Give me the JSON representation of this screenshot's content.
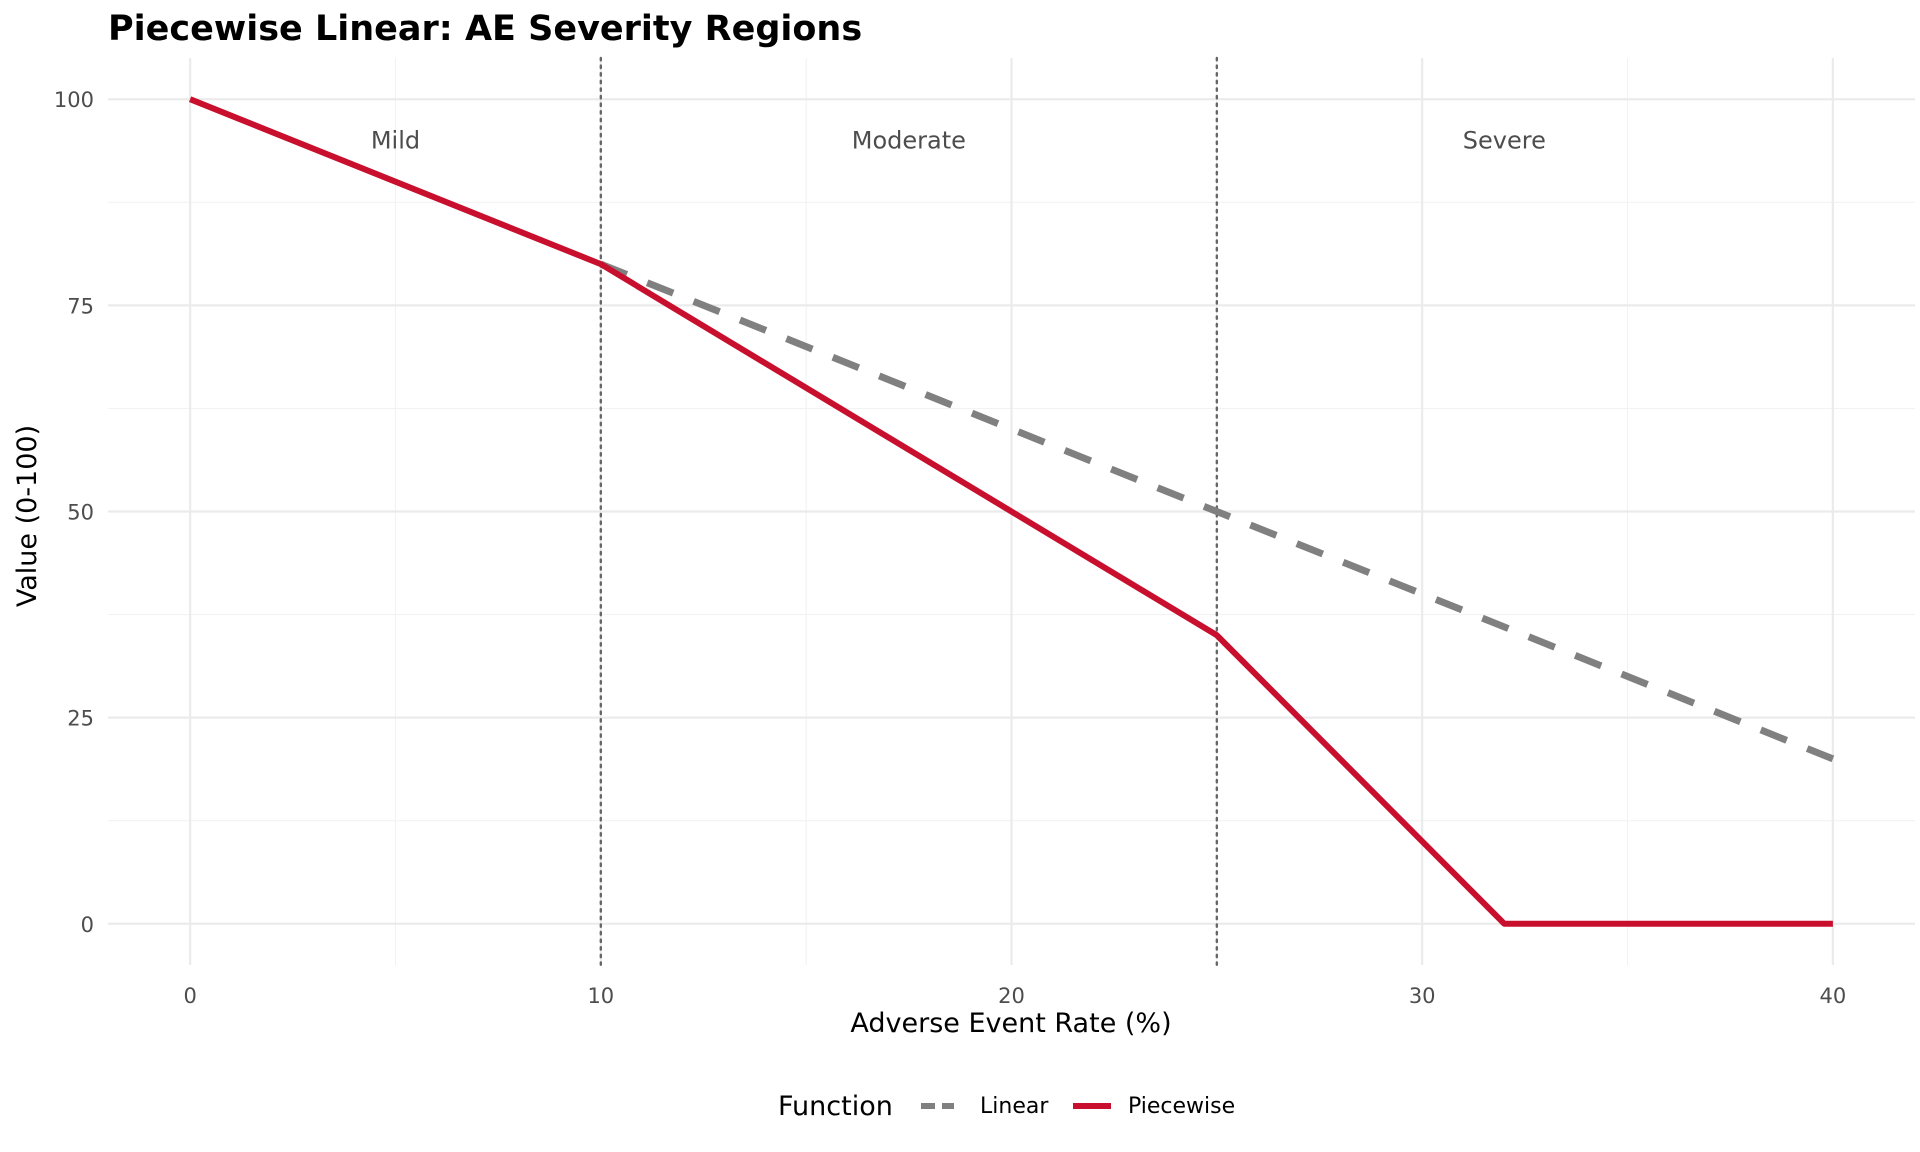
{
  "chart_data": {
    "type": "line",
    "title": "Piecewise Linear: AE Severity Regions",
    "xlabel": "Adverse Event Rate (%)",
    "ylabel": "Value (0-100)",
    "xlim": [
      -2,
      42
    ],
    "ylim": [
      -5,
      105
    ],
    "x_ticks": [
      0,
      10,
      20,
      30,
      40
    ],
    "y_ticks": [
      0,
      25,
      50,
      75,
      100
    ],
    "x_tick_labels": [
      "0",
      "10",
      "20",
      "30",
      "40"
    ],
    "y_tick_labels": [
      "0",
      "25",
      "50",
      "75",
      "100"
    ],
    "grid": true,
    "thresholds": [
      10,
      25
    ],
    "regions": [
      {
        "label": "Mild",
        "x": 5,
        "y": 95
      },
      {
        "label": "Moderate",
        "x": 17.5,
        "y": 95
      },
      {
        "label": "Severe",
        "x": 32,
        "y": 95
      }
    ],
    "series": [
      {
        "name": "Linear",
        "color": "#808080",
        "style": "dashed",
        "x": [
          10,
          40
        ],
        "y": [
          80,
          20
        ]
      },
      {
        "name": "Piecewise",
        "color": "#C8102E",
        "style": "solid",
        "x": [
          0,
          10,
          25,
          32,
          40
        ],
        "y": [
          100,
          80,
          35,
          0,
          0
        ]
      }
    ],
    "legend": {
      "title": "Function",
      "position": "bottom",
      "items": [
        "Linear",
        "Piecewise"
      ]
    }
  }
}
